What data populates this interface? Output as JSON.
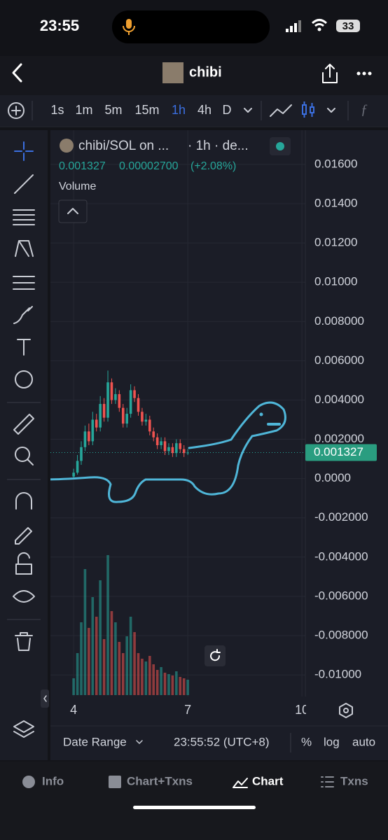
{
  "status_bar": {
    "time": "23:55",
    "battery": "33"
  },
  "header": {
    "title": "chibi"
  },
  "timeframes": [
    "1s",
    "1m",
    "5m",
    "15m",
    "1h",
    "4h",
    "D"
  ],
  "chart_data": {
    "type": "candlestick",
    "legend": {
      "symbol": "chibi/SOL on ...",
      "interval": "· 1h · de...",
      "price": "0.001327",
      "change": "0.00002700",
      "change_percent": "(+2.08%)",
      "volume_label": "Volume"
    },
    "x": [
      4.0,
      4.1,
      4.2,
      4.3,
      4.4,
      4.5,
      4.6,
      4.7,
      4.8,
      4.9,
      5.0,
      5.1,
      5.2,
      5.3,
      5.4,
      5.5,
      5.6,
      5.7,
      5.8,
      5.9,
      6.0,
      6.1,
      6.2,
      6.3,
      6.4,
      6.5,
      6.6,
      6.7,
      6.8,
      6.9,
      7.0
    ],
    "open": [
      0.0001,
      0.0003,
      0.0009,
      0.0016,
      0.0024,
      0.0019,
      0.003,
      0.0026,
      0.0038,
      0.0031,
      0.0049,
      0.004,
      0.0043,
      0.0036,
      0.0028,
      0.0033,
      0.0045,
      0.0041,
      0.0034,
      0.0029,
      0.003,
      0.0024,
      0.0021,
      0.0017,
      0.0019,
      0.0014,
      0.0016,
      0.0013,
      0.0018,
      0.0015,
      0.0013
    ],
    "high": [
      0.0005,
      0.0012,
      0.0019,
      0.0027,
      0.0028,
      0.0034,
      0.0033,
      0.0042,
      0.0041,
      0.0055,
      0.0051,
      0.0046,
      0.0045,
      0.0038,
      0.0036,
      0.0048,
      0.0047,
      0.0043,
      0.0036,
      0.0033,
      0.0032,
      0.0026,
      0.0023,
      0.0021,
      0.0021,
      0.0018,
      0.0018,
      0.002,
      0.002,
      0.0017,
      0.0015
    ],
    "low": [
      0.0,
      0.0002,
      0.0007,
      0.0014,
      0.0017,
      0.0017,
      0.0024,
      0.0024,
      0.0029,
      0.0029,
      0.0038,
      0.0038,
      0.0034,
      0.0026,
      0.0026,
      0.0031,
      0.0039,
      0.0032,
      0.0027,
      0.0027,
      0.0022,
      0.0019,
      0.0015,
      0.0015,
      0.0012,
      0.0012,
      0.0011,
      0.0011,
      0.0013,
      0.0011,
      0.0012
    ],
    "close": [
      0.0003,
      0.0009,
      0.0016,
      0.0024,
      0.0019,
      0.003,
      0.0026,
      0.0038,
      0.0031,
      0.0049,
      0.004,
      0.0043,
      0.0036,
      0.0028,
      0.0033,
      0.0045,
      0.0041,
      0.0034,
      0.0029,
      0.003,
      0.0024,
      0.0021,
      0.0017,
      0.0019,
      0.0014,
      0.0016,
      0.0013,
      0.0018,
      0.0015,
      0.0013,
      0.001327
    ],
    "volume": [
      120,
      300,
      520,
      900,
      480,
      700,
      560,
      820,
      400,
      1000,
      600,
      520,
      380,
      300,
      420,
      560,
      450,
      300,
      260,
      240,
      280,
      220,
      180,
      200,
      160,
      150,
      140,
      170,
      130,
      120,
      110
    ],
    "last": 0.001327,
    "up_color": "#26a69a",
    "down_color": "#ef5350",
    "ylim": [
      -0.0111,
      0.0176
    ],
    "yticks": [
      {
        "value": 0.016,
        "label": "0.01600"
      },
      {
        "value": 0.014,
        "label": "0.01400"
      },
      {
        "value": 0.012,
        "label": "0.01200"
      },
      {
        "value": 0.01,
        "label": "0.01000"
      },
      {
        "value": 0.008,
        "label": "0.008000"
      },
      {
        "value": 0.006,
        "label": "0.006000"
      },
      {
        "value": 0.004,
        "label": "0.004000"
      },
      {
        "value": 0.002,
        "label": "0.002000"
      },
      {
        "value": 0,
        "label": "0.0000"
      },
      {
        "value": -0.002,
        "label": "-0.002000"
      },
      {
        "value": -0.004,
        "label": "-0.004000"
      },
      {
        "value": -0.006,
        "label": "-0.006000"
      },
      {
        "value": -0.008,
        "label": "-0.008000"
      },
      {
        "value": -0.01,
        "label": "-0.01000"
      }
    ],
    "xlim": [
      3.39,
      10.09
    ],
    "xticks": [
      4,
      7,
      10
    ],
    "grid": true
  },
  "chart_footer": {
    "date_range": "Date Range",
    "time": "23:55:52 (UTC+8)",
    "percent": "%",
    "log": "log",
    "auto": "auto"
  },
  "tabs": [
    "Info",
    "Chart+Txns",
    "Chart",
    "Txns"
  ]
}
